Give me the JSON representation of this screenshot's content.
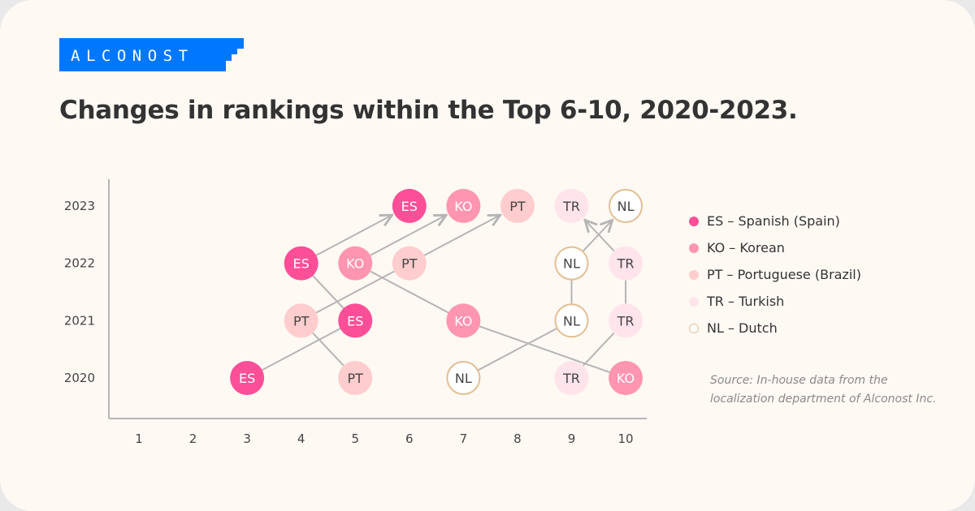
{
  "brand": {
    "logo_text": "ALCONOST",
    "color": "#0077ff"
  },
  "title": "Changes in rankings within the Top 6-10, 2020-2023.",
  "source": [
    "Source: In-house data from the",
    "localization department of Alconost Inc."
  ],
  "chart_data": {
    "type": "scatter",
    "title": "Changes in rankings within the Top 6-10, 2020-2023.",
    "x_ticks": [
      "1",
      "2",
      "3",
      "4",
      "5",
      "6",
      "7",
      "8",
      "9",
      "10"
    ],
    "y_ticks": [
      "2020",
      "2021",
      "2022",
      "2023"
    ],
    "xlim": [
      1,
      10
    ],
    "ylim": [
      2020,
      2023
    ],
    "grid": false,
    "legend_position": "right",
    "series": [
      {
        "code": "ES",
        "name": "ES – Spanish (Spain)",
        "color": "#fd4f97",
        "text_color": "#ffffff",
        "points": [
          [
            3,
            2020
          ],
          [
            5,
            2021
          ],
          [
            4,
            2022
          ],
          [
            6,
            2023
          ]
        ]
      },
      {
        "code": "KO",
        "name": "KO – Korean",
        "color": "#ff95b1",
        "text_color": "#ffffff",
        "points": [
          [
            10,
            2020
          ],
          [
            7,
            2021
          ],
          [
            5,
            2022
          ],
          [
            7,
            2023
          ]
        ]
      },
      {
        "code": "PT",
        "name": "PT – Portuguese (Brazil)",
        "color": "#ffcdcd",
        "text_color": "#444444",
        "points": [
          [
            5,
            2020
          ],
          [
            4,
            2021
          ],
          [
            6,
            2022
          ],
          [
            8,
            2023
          ]
        ]
      },
      {
        "code": "TR",
        "name": "TR – Turkish",
        "color": "#ffe4ec",
        "text_color": "#444444",
        "points": [
          [
            9,
            2020
          ],
          [
            10,
            2021
          ],
          [
            10,
            2022
          ],
          [
            9,
            2023
          ]
        ]
      },
      {
        "code": "NL",
        "name": "NL – Dutch",
        "color": "#ffffff",
        "border": "#e2bf94",
        "text_color": "#444444",
        "points": [
          [
            7,
            2020
          ],
          [
            9,
            2021
          ],
          [
            9,
            2022
          ],
          [
            10,
            2023
          ]
        ]
      }
    ]
  }
}
